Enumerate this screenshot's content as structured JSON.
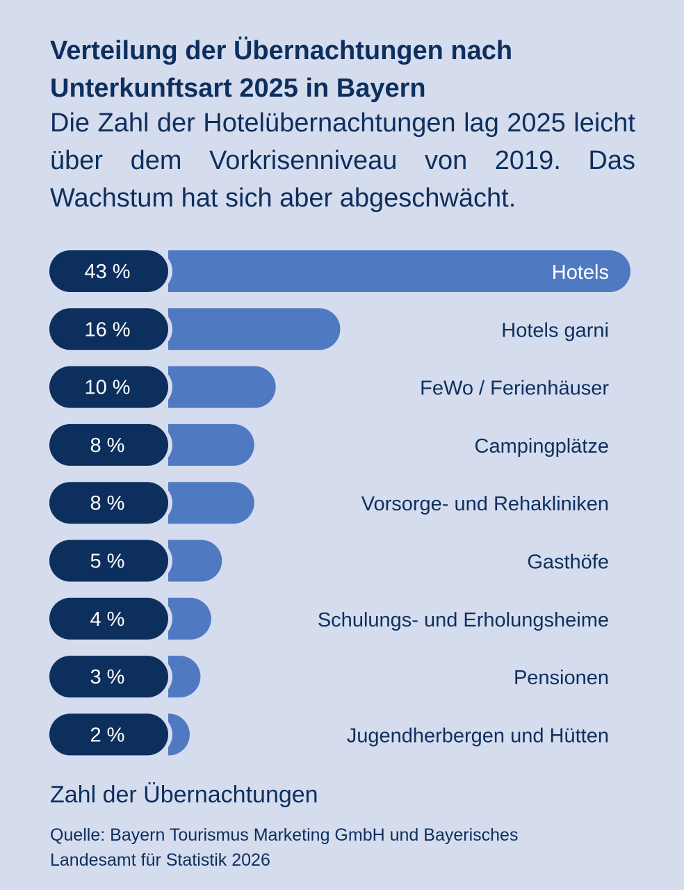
{
  "header": {
    "title": "Verteilung der Übernachtungen nach Unterkunftsart 2025 in Bayern",
    "subtitle": "Die Zahl der Hotelübernachtungen lag 2025 leicht über dem Vorkrisenniveau von 2019. Das Wachstum hat sich aber abgeschwächt."
  },
  "chart_data": {
    "type": "bar",
    "orientation": "horizontal",
    "title": "Verteilung der Übernachtungen nach Unterkunftsart 2025 in Bayern",
    "unit": "%",
    "categories": [
      "Hotels",
      "Hotels garni",
      "FeWo / Ferienhäuser",
      "Campingplätze",
      "Vorsorge- und Rehakliniken",
      "Gasthöfe",
      "Schulungs- und Erholungsheime",
      "Pensionen",
      "Jugendherbergen und Hütten"
    ],
    "values": [
      43,
      16,
      10,
      8,
      8,
      5,
      4,
      3,
      2
    ],
    "value_labels": [
      "43 %",
      "16 %",
      "10 %",
      "8 %",
      "8 %",
      "5 %",
      "4 %",
      "3 %",
      "2 %"
    ],
    "xlim": [
      0,
      43
    ],
    "grid": false,
    "legend": "none"
  },
  "footer": {
    "label": "Zahl der Übernachtungen",
    "source": "Quelle: Bayern Tourismus Marketing GmbH und Bayerisches Landesamt für Statistik 2026"
  },
  "colors": {
    "background": "#d5dcee",
    "bar": "#4f79c1",
    "pill": "#0d2f5e",
    "text": "#0d2f5e",
    "bar_label_on_bar": "#ffffff"
  }
}
